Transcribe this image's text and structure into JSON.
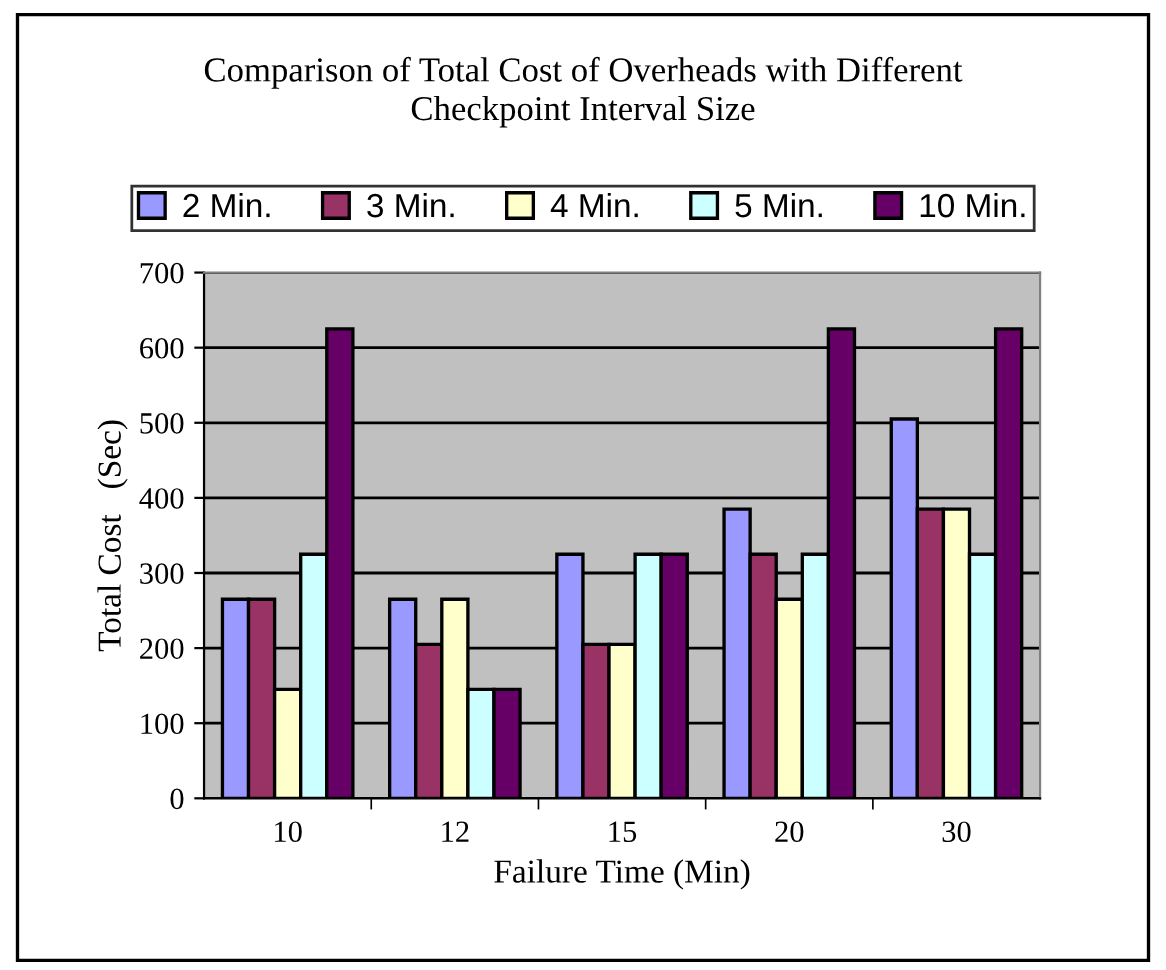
{
  "chart_data": {
    "type": "bar",
    "title": "Comparison of Total Cost of Overheads with Different\nCheckpoint Interval Size",
    "xlabel": "Failure Time (Min)",
    "ylabel": "Total Cost   (Sec)",
    "categories": [
      "10",
      "12",
      "15",
      "20",
      "30"
    ],
    "series": [
      {
        "name": "2 Min.",
        "color": "#9999ff",
        "values": [
          265,
          265,
          325,
          385,
          505
        ]
      },
      {
        "name": "3 Min.",
        "color": "#993366",
        "values": [
          265,
          205,
          205,
          325,
          385
        ]
      },
      {
        "name": "4 Min.",
        "color": "#ffffcc",
        "values": [
          145,
          265,
          205,
          265,
          385
        ]
      },
      {
        "name": "5 Min.",
        "color": "#ccffff",
        "values": [
          325,
          145,
          325,
          325,
          325
        ]
      },
      {
        "name": "10 Min.",
        "color": "#660066",
        "values": [
          625,
          145,
          325,
          625,
          625
        ]
      }
    ],
    "ylim": [
      0,
      700
    ],
    "yticks": [
      0,
      100,
      200,
      300,
      400,
      500,
      600,
      700
    ],
    "grid": "y",
    "legend": "top"
  }
}
